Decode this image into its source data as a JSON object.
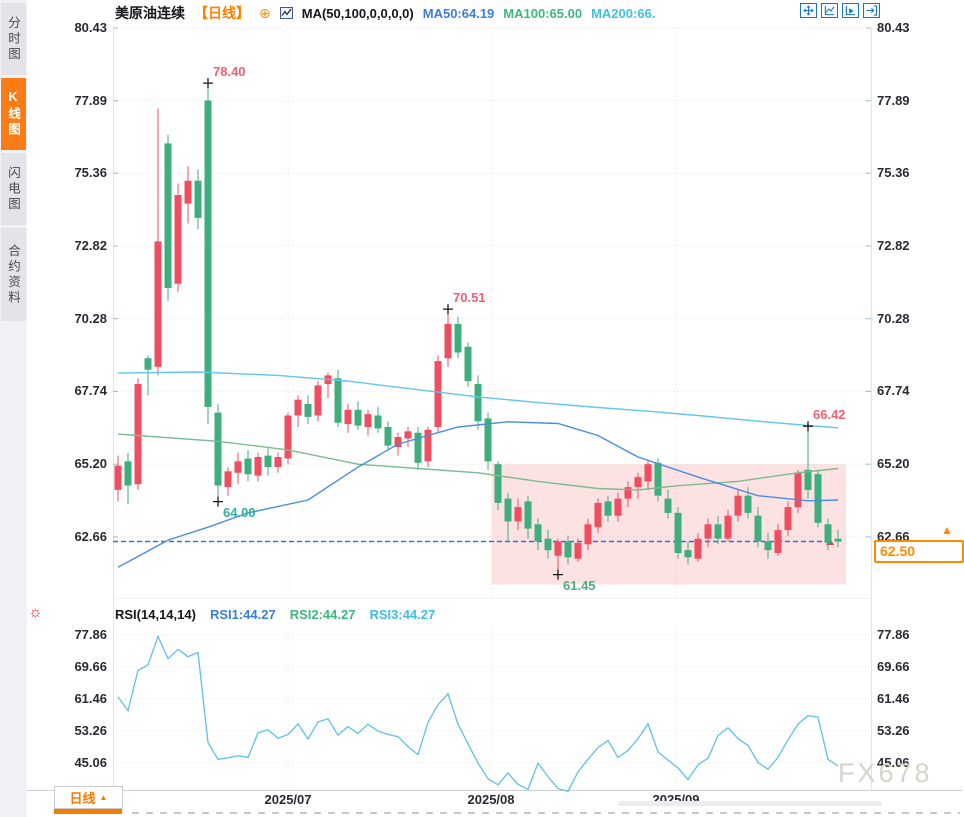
{
  "sidebar": {
    "tabs": [
      {
        "label": "分时图",
        "active": false
      },
      {
        "label": "K线图",
        "active": true
      },
      {
        "label": "闪电图",
        "active": false
      },
      {
        "label": "合约资料",
        "active": false
      }
    ]
  },
  "header": {
    "symbol": "美原油连续",
    "period_label": "【日线】",
    "expand_icon": "⊕",
    "ma_settings": "MA(50,100,0,0,0,0)",
    "ma50_value": "MA50:64.19",
    "ma100_value": "MA100:65.00",
    "ma200_value": "MA200:66."
  },
  "toolbar": {
    "icons": [
      "pan-crosshair-icon",
      "axis-line-chart-icon",
      "axis-play-icon",
      "exit-right-icon"
    ]
  },
  "rsi_header": {
    "settings_icon": "☼",
    "title": "RSI(14,14,14)",
    "rsi1": "RSI1:44.27",
    "rsi2": "RSI2:44.27",
    "rsi3": "RSI3:44.27"
  },
  "axes": {
    "price_ticks": [
      "80.43",
      "77.89",
      "75.36",
      "72.82",
      "70.28",
      "67.74",
      "65.20",
      "62.66"
    ],
    "rsi_ticks": [
      "77.86",
      "69.66",
      "61.46",
      "53.26",
      "45.06"
    ]
  },
  "bottom": {
    "period_tab_label": "日线",
    "period_tab_arrow": "▲"
  },
  "watermark": "FX678",
  "last_price_box": {
    "value": "62.50",
    "arrow": "▲"
  },
  "chart_data": {
    "type": "candlestick",
    "instrument": "美原油连续",
    "interval": "日线",
    "price_view_range": [
      60.3,
      80.43
    ],
    "candles": [
      [
        64.3,
        65.5,
        63.9,
        65.15
      ],
      [
        65.3,
        65.6,
        63.8,
        64.45
      ],
      [
        64.5,
        68.2,
        64.3,
        68.0
      ],
      [
        68.9,
        69.0,
        67.6,
        68.5
      ],
      [
        68.6,
        77.62,
        68.3,
        72.98
      ],
      [
        76.4,
        76.7,
        70.9,
        71.35
      ],
      [
        71.5,
        75.0,
        71.2,
        74.6
      ],
      [
        74.3,
        75.6,
        73.6,
        75.1
      ],
      [
        75.1,
        75.5,
        73.4,
        73.8
      ],
      [
        77.9,
        78.4,
        66.6,
        67.2
      ],
      [
        67.0,
        67.3,
        64.0,
        64.45
      ],
      [
        64.4,
        65.1,
        64.1,
        64.95
      ],
      [
        64.9,
        65.6,
        64.5,
        65.3
      ],
      [
        65.4,
        65.7,
        64.6,
        64.85
      ],
      [
        64.8,
        65.6,
        64.6,
        65.45
      ],
      [
        65.5,
        65.8,
        64.8,
        65.1
      ],
      [
        65.1,
        65.6,
        64.9,
        65.45
      ],
      [
        65.4,
        67.0,
        65.2,
        66.9
      ],
      [
        66.9,
        67.6,
        66.5,
        67.45
      ],
      [
        67.3,
        67.6,
        66.6,
        66.85
      ],
      [
        66.9,
        68.1,
        66.7,
        67.95
      ],
      [
        68.0,
        68.4,
        67.5,
        68.3
      ],
      [
        68.2,
        68.5,
        66.5,
        66.65
      ],
      [
        66.6,
        67.3,
        66.3,
        67.1
      ],
      [
        67.1,
        67.4,
        66.4,
        66.55
      ],
      [
        66.5,
        67.1,
        66.2,
        66.95
      ],
      [
        66.9,
        67.2,
        66.3,
        66.45
      ],
      [
        66.5,
        66.7,
        65.7,
        65.85
      ],
      [
        65.8,
        66.3,
        65.5,
        66.15
      ],
      [
        66.1,
        66.5,
        65.8,
        66.35
      ],
      [
        66.3,
        66.5,
        65.0,
        65.25
      ],
      [
        65.3,
        66.5,
        65.1,
        66.4
      ],
      [
        66.5,
        69.0,
        66.3,
        68.8
      ],
      [
        68.9,
        70.51,
        68.6,
        70.1
      ],
      [
        70.1,
        70.35,
        68.9,
        69.1
      ],
      [
        69.3,
        69.45,
        67.9,
        68.1
      ],
      [
        68.0,
        68.3,
        66.4,
        66.7
      ],
      [
        66.8,
        67.0,
        65.0,
        65.3
      ],
      [
        65.2,
        65.3,
        63.6,
        63.85
      ],
      [
        64.0,
        64.2,
        62.5,
        63.2
      ],
      [
        63.2,
        64.0,
        62.9,
        63.7
      ],
      [
        63.9,
        64.1,
        62.6,
        62.95
      ],
      [
        63.1,
        63.3,
        62.2,
        62.5
      ],
      [
        62.6,
        62.9,
        61.9,
        62.2
      ],
      [
        62.0,
        62.6,
        61.45,
        62.5
      ],
      [
        62.5,
        62.7,
        61.7,
        61.95
      ],
      [
        61.9,
        62.6,
        61.8,
        62.45
      ],
      [
        62.4,
        63.3,
        62.2,
        63.1
      ],
      [
        63.0,
        64.0,
        62.8,
        63.85
      ],
      [
        63.9,
        64.1,
        63.2,
        63.4
      ],
      [
        63.4,
        64.2,
        63.2,
        64.0
      ],
      [
        64.0,
        64.6,
        63.7,
        64.4
      ],
      [
        64.4,
        64.9,
        64.0,
        64.75
      ],
      [
        64.6,
        65.35,
        64.3,
        65.2
      ],
      [
        65.25,
        65.4,
        63.9,
        64.1
      ],
      [
        64.0,
        64.3,
        63.3,
        63.5
      ],
      [
        63.5,
        63.7,
        61.9,
        62.1
      ],
      [
        62.2,
        62.5,
        61.7,
        61.95
      ],
      [
        61.9,
        62.8,
        61.8,
        62.6
      ],
      [
        62.6,
        63.3,
        62.3,
        63.1
      ],
      [
        63.1,
        63.4,
        62.4,
        62.6
      ],
      [
        62.6,
        63.6,
        62.5,
        63.4
      ],
      [
        63.4,
        64.3,
        63.2,
        64.1
      ],
      [
        64.1,
        64.4,
        63.3,
        63.5
      ],
      [
        63.4,
        63.7,
        62.3,
        62.5
      ],
      [
        62.5,
        62.8,
        61.9,
        62.2
      ],
      [
        62.1,
        63.1,
        62.0,
        62.9
      ],
      [
        62.9,
        63.9,
        62.7,
        63.7
      ],
      [
        63.7,
        65.0,
        63.5,
        64.9
      ],
      [
        65.0,
        66.42,
        64.0,
        64.3
      ],
      [
        64.85,
        65.0,
        63.0,
        63.15
      ],
      [
        63.1,
        63.3,
        62.2,
        62.45
      ],
      [
        62.6,
        62.9,
        62.3,
        62.5
      ]
    ],
    "up_color": "#ee4e60",
    "down_color": "#3fae7c",
    "ma50_points": [
      [
        0,
        61.6
      ],
      [
        5,
        62.55
      ],
      [
        9,
        63.0
      ],
      [
        13,
        63.5
      ],
      [
        19,
        63.95
      ],
      [
        24,
        65.1
      ],
      [
        28,
        65.9
      ],
      [
        34,
        66.5
      ],
      [
        39,
        66.68
      ],
      [
        44,
        66.62
      ],
      [
        48,
        66.2
      ],
      [
        52,
        65.45
      ],
      [
        58,
        64.75
      ],
      [
        64,
        64.1
      ],
      [
        69,
        63.92
      ],
      [
        72,
        63.95
      ]
    ],
    "ma100_points": [
      [
        0,
        66.25
      ],
      [
        10,
        66.0
      ],
      [
        17,
        65.7
      ],
      [
        24,
        65.2
      ],
      [
        30,
        65.05
      ],
      [
        36,
        64.9
      ],
      [
        42,
        64.6
      ],
      [
        48,
        64.35
      ],
      [
        52,
        64.3
      ],
      [
        56,
        64.45
      ],
      [
        62,
        64.6
      ],
      [
        68,
        64.9
      ],
      [
        72,
        65.05
      ]
    ],
    "ma200_points": [
      [
        0,
        68.38
      ],
      [
        8,
        68.42
      ],
      [
        16,
        68.3
      ],
      [
        23,
        68.1
      ],
      [
        30,
        67.8
      ],
      [
        36,
        67.55
      ],
      [
        42,
        67.35
      ],
      [
        48,
        67.18
      ],
      [
        53,
        67.05
      ],
      [
        58,
        66.9
      ],
      [
        64,
        66.7
      ],
      [
        69,
        66.55
      ],
      [
        72,
        66.47
      ]
    ],
    "ma_colors": {
      "ma50": "#4a8ce0",
      "ma100": "#7cbb8d",
      "ma200": "#62c6e8"
    },
    "reference_line": {
      "price": 62.5,
      "color": "#2e6de0"
    },
    "highlight_box": {
      "start_index": 38,
      "end_index": 72,
      "top": 65.2,
      "bottom": 61.0,
      "color": "rgba(246,150,150,0.28)"
    },
    "annotations": [
      {
        "index": 9,
        "price": 78.4,
        "side": "high",
        "label": "78.40",
        "color": "#f25f72"
      },
      {
        "index": 10,
        "price": 64.0,
        "side": "low",
        "label": "64.00",
        "color": "#2fb09c"
      },
      {
        "index": 33,
        "price": 70.51,
        "side": "high",
        "label": "70.51",
        "color": "#f25f72"
      },
      {
        "index": 44,
        "price": 61.45,
        "side": "low",
        "label": "61.45",
        "color": "#4bae7c"
      },
      {
        "index": 69,
        "price": 66.42,
        "side": "high",
        "label": "66.42",
        "color": "#f25f72"
      }
    ],
    "months": [
      {
        "label": "2025/07",
        "index": 17
      },
      {
        "label": "2025/08",
        "index": 37.3
      },
      {
        "label": "2025/09",
        "index": 55.8
      }
    ],
    "rsi": {
      "params": "(14,14,14)",
      "last_values": [
        44.27,
        44.27,
        44.27
      ],
      "color": "#5fc0ea",
      "values": [
        62.0,
        58.5,
        68.8,
        70.2,
        77.5,
        71.8,
        74.2,
        72.3,
        73.4,
        50.3,
        46.0,
        46.4,
        46.9,
        46.5,
        52.8,
        53.6,
        51.4,
        52.4,
        55.1,
        51.2,
        55.6,
        56.4,
        52.2,
        54.4,
        52.6,
        55.0,
        53.2,
        52.4,
        51.8,
        49.3,
        47.2,
        55.5,
        60.0,
        62.8,
        55.0,
        50.0,
        45.0,
        41.0,
        39.5,
        42.5,
        39.6,
        38.3,
        45.0,
        41.6,
        38.5,
        37.8,
        42.8,
        46.0,
        49.0,
        50.8,
        46.5,
        48.3,
        51.3,
        55.1,
        47.9,
        45.8,
        43.8,
        40.8,
        44.6,
        46.3,
        52.1,
        54.1,
        51.3,
        49.6,
        45.2,
        43.5,
        46.5,
        51.0,
        55.0,
        57.2,
        56.8,
        46.0,
        44.3
      ]
    },
    "last_price": 62.5
  }
}
